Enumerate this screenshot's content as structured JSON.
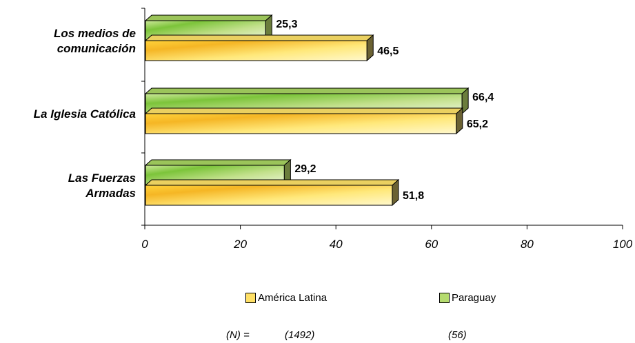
{
  "chart_data": {
    "type": "bar",
    "orientation": "horizontal",
    "categories": [
      "Los medios de comunicación",
      "La Iglesia Católica",
      "Las Fuerzas Armadas"
    ],
    "category_lines": [
      [
        "Los medios de",
        "comunicación"
      ],
      [
        "La Iglesia Católica"
      ],
      [
        "Las Fuerzas",
        "Armadas"
      ]
    ],
    "series": [
      {
        "name": "Paraguay",
        "values": [
          25.3,
          66.4,
          29.2
        ],
        "labels": [
          "25,3",
          "66,4",
          "29,2"
        ],
        "color": "#b5db6f"
      },
      {
        "name": "América Latina",
        "values": [
          46.5,
          65.2,
          51.8
        ],
        "labels": [
          "46,5",
          "65,2",
          "51,8"
        ],
        "color": "#ffe066"
      }
    ],
    "xlim": [
      0,
      100
    ],
    "xticks": [
      0,
      20,
      40,
      60,
      80,
      100
    ],
    "grid": false,
    "legend_position": "bottom"
  },
  "legend": {
    "america_latina": "América Latina",
    "paraguay": "Paraguay"
  },
  "sample_sizes": {
    "label": "(N) =",
    "america_latina": "(1492)",
    "paraguay": "(56)"
  },
  "colors": {
    "america_latina": "#ffe066",
    "paraguay": "#b5db6f"
  }
}
